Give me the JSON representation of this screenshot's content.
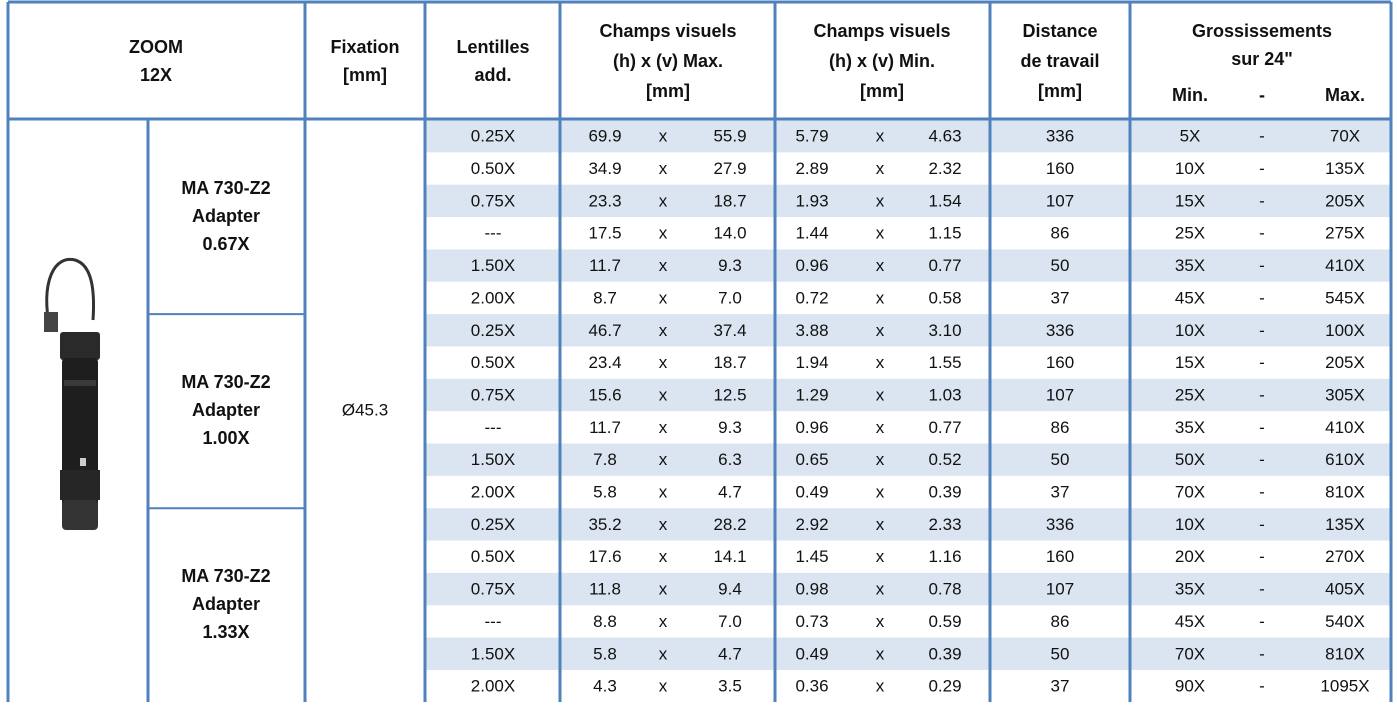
{
  "header": {
    "zoom": [
      "ZOOM",
      "12X"
    ],
    "fixation": [
      "Fixation",
      "[mm]"
    ],
    "lenses": [
      "Lentilles",
      "add."
    ],
    "fields_max": [
      "Champs visuels",
      "(h) x (v) Max.",
      "[mm]"
    ],
    "fields_min": [
      "Champs visuels",
      "(h) x (v) Min.",
      "[mm]"
    ],
    "distance": [
      "Distance",
      "de travail",
      "[mm]"
    ],
    "magnification": [
      "Grossissements",
      "sur 24\""
    ],
    "magnification_sub": [
      "Min.",
      "-",
      "Max."
    ]
  },
  "fixation": "Ø45.3",
  "groups": [
    {
      "adapter": [
        "MA 730-Z2",
        "Adapter",
        "0.67X"
      ],
      "rows": [
        [
          "0.25X",
          "69.9",
          "x",
          "55.9",
          "5.79",
          "x",
          "4.63",
          "336",
          "5X",
          "-",
          "70X"
        ],
        [
          "0.50X",
          "34.9",
          "x",
          "27.9",
          "2.89",
          "x",
          "2.32",
          "160",
          "10X",
          "-",
          "135X"
        ],
        [
          "0.75X",
          "23.3",
          "x",
          "18.7",
          "1.93",
          "x",
          "1.54",
          "107",
          "15X",
          "-",
          "205X"
        ],
        [
          "---",
          "17.5",
          "x",
          "14.0",
          "1.44",
          "x",
          "1.15",
          "86",
          "25X",
          "-",
          "275X"
        ],
        [
          "1.50X",
          "11.7",
          "x",
          "9.3",
          "0.96",
          "x",
          "0.77",
          "50",
          "35X",
          "-",
          "410X"
        ],
        [
          "2.00X",
          "8.7",
          "x",
          "7.0",
          "0.72",
          "x",
          "0.58",
          "37",
          "45X",
          "-",
          "545X"
        ]
      ]
    },
    {
      "adapter": [
        "MA 730-Z2",
        "Adapter",
        "1.00X"
      ],
      "rows": [
        [
          "0.25X",
          "46.7",
          "x",
          "37.4",
          "3.88",
          "x",
          "3.10",
          "336",
          "10X",
          "-",
          "100X"
        ],
        [
          "0.50X",
          "23.4",
          "x",
          "18.7",
          "1.94",
          "x",
          "1.55",
          "160",
          "15X",
          "-",
          "205X"
        ],
        [
          "0.75X",
          "15.6",
          "x",
          "12.5",
          "1.29",
          "x",
          "1.03",
          "107",
          "25X",
          "-",
          "305X"
        ],
        [
          "---",
          "11.7",
          "x",
          "9.3",
          "0.96",
          "x",
          "0.77",
          "86",
          "35X",
          "-",
          "410X"
        ],
        [
          "1.50X",
          "7.8",
          "x",
          "6.3",
          "0.65",
          "x",
          "0.52",
          "50",
          "50X",
          "-",
          "610X"
        ],
        [
          "2.00X",
          "5.8",
          "x",
          "4.7",
          "0.49",
          "x",
          "0.39",
          "37",
          "70X",
          "-",
          "810X"
        ]
      ]
    },
    {
      "adapter": [
        "MA 730-Z2",
        "Adapter",
        "1.33X"
      ],
      "rows": [
        [
          "0.25X",
          "35.2",
          "x",
          "28.2",
          "2.92",
          "x",
          "2.33",
          "336",
          "10X",
          "-",
          "135X"
        ],
        [
          "0.50X",
          "17.6",
          "x",
          "14.1",
          "1.45",
          "x",
          "1.16",
          "160",
          "20X",
          "-",
          "270X"
        ],
        [
          "0.75X",
          "11.8",
          "x",
          "9.4",
          "0.98",
          "x",
          "0.78",
          "107",
          "35X",
          "-",
          "405X"
        ],
        [
          "---",
          "8.8",
          "x",
          "7.0",
          "0.73",
          "x",
          "0.59",
          "86",
          "45X",
          "-",
          "540X"
        ],
        [
          "1.50X",
          "5.8",
          "x",
          "4.7",
          "0.49",
          "x",
          "0.39",
          "50",
          "70X",
          "-",
          "810X"
        ],
        [
          "2.00X",
          "4.3",
          "x",
          "3.5",
          "0.36",
          "x",
          "0.29",
          "37",
          "90X",
          "-",
          "1095X"
        ]
      ]
    }
  ]
}
